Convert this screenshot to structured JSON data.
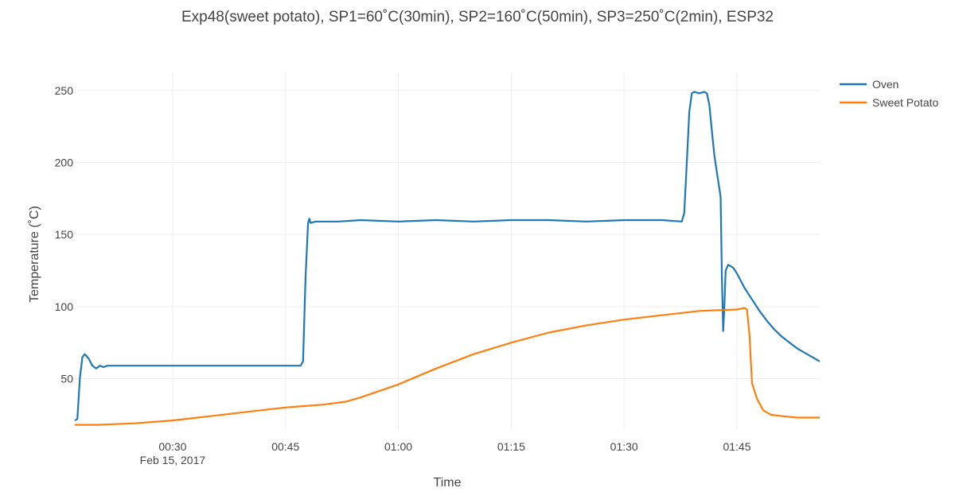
{
  "chart_data": {
    "type": "line",
    "title": "Exp48(sweet potato), SP1=60˚C(30min), SP2=160˚C(50min), SP3=250˚C(2min), ESP32",
    "xlabel": "Time",
    "ylabel": "Temperature (˚C)",
    "x_range": [
      "00:17",
      "01:56"
    ],
    "ylim": [
      15,
      262
    ],
    "x_ticks": [
      {
        "time": "00:30",
        "label": "00:30",
        "sublabel": "Feb 15, 2017"
      },
      {
        "time": "00:45",
        "label": "00:45",
        "sublabel": ""
      },
      {
        "time": "01:00",
        "label": "01:00",
        "sublabel": ""
      },
      {
        "time": "01:15",
        "label": "01:15",
        "sublabel": ""
      },
      {
        "time": "01:30",
        "label": "01:30",
        "sublabel": ""
      },
      {
        "time": "01:45",
        "label": "01:45",
        "sublabel": ""
      }
    ],
    "y_ticks": [
      {
        "value": 50,
        "label": "50"
      },
      {
        "value": 100,
        "label": "100"
      },
      {
        "value": 150,
        "label": "150"
      },
      {
        "value": 200,
        "label": "200"
      },
      {
        "value": 250,
        "label": "250"
      }
    ],
    "grid": true,
    "legend_position": "top-right",
    "series": [
      {
        "name": "Oven",
        "color": "#1f77b4",
        "points": [
          [
            "00:17:00",
            21
          ],
          [
            "00:17:20",
            22
          ],
          [
            "00:17:40",
            50
          ],
          [
            "00:18:00",
            65
          ],
          [
            "00:18:20",
            67
          ],
          [
            "00:18:50",
            64
          ],
          [
            "00:19:20",
            59
          ],
          [
            "00:19:50",
            57
          ],
          [
            "00:20:20",
            59
          ],
          [
            "00:20:50",
            58
          ],
          [
            "00:21:20",
            59
          ],
          [
            "00:22:00",
            59
          ],
          [
            "00:25:00",
            59
          ],
          [
            "00:30:00",
            59
          ],
          [
            "00:35:00",
            59
          ],
          [
            "00:40:00",
            59
          ],
          [
            "00:45:00",
            59
          ],
          [
            "00:47:00",
            59
          ],
          [
            "00:47:20",
            62
          ],
          [
            "00:47:40",
            120
          ],
          [
            "00:48:00",
            158
          ],
          [
            "00:48:10",
            161
          ],
          [
            "00:48:20",
            158
          ],
          [
            "00:49:00",
            159
          ],
          [
            "00:52:00",
            159
          ],
          [
            "00:55:00",
            160
          ],
          [
            "01:00:00",
            159
          ],
          [
            "01:05:00",
            160
          ],
          [
            "01:10:00",
            159
          ],
          [
            "01:15:00",
            160
          ],
          [
            "01:20:00",
            160
          ],
          [
            "01:25:00",
            159
          ],
          [
            "01:30:00",
            160
          ],
          [
            "01:35:00",
            160
          ],
          [
            "01:37:40",
            159
          ],
          [
            "01:38:00",
            165
          ],
          [
            "01:38:20",
            200
          ],
          [
            "01:38:40",
            235
          ],
          [
            "01:39:00",
            248
          ],
          [
            "01:39:20",
            249
          ],
          [
            "01:40:00",
            248
          ],
          [
            "01:40:40",
            249
          ],
          [
            "01:41:00",
            248
          ],
          [
            "01:41:20",
            240
          ],
          [
            "01:41:40",
            222
          ],
          [
            "01:42:00",
            205
          ],
          [
            "01:42:20",
            193
          ],
          [
            "01:42:40",
            182
          ],
          [
            "01:42:50",
            176
          ],
          [
            "01:43:00",
            120
          ],
          [
            "01:43:10",
            83
          ],
          [
            "01:43:20",
            100
          ],
          [
            "01:43:30",
            125
          ],
          [
            "01:43:50",
            129
          ],
          [
            "01:44:30",
            127
          ],
          [
            "01:45:00",
            123
          ],
          [
            "01:46:00",
            113
          ],
          [
            "01:47:00",
            105
          ],
          [
            "01:48:00",
            97
          ],
          [
            "01:49:00",
            90
          ],
          [
            "01:50:00",
            84
          ],
          [
            "01:51:00",
            79
          ],
          [
            "01:52:00",
            75
          ],
          [
            "01:53:00",
            71
          ],
          [
            "01:54:00",
            68
          ],
          [
            "01:55:00",
            65
          ],
          [
            "01:56:00",
            62
          ]
        ]
      },
      {
        "name": "Sweet Potato",
        "color": "#ff7f0e",
        "points": [
          [
            "00:17:00",
            18
          ],
          [
            "00:20:00",
            18
          ],
          [
            "00:25:00",
            19
          ],
          [
            "00:30:00",
            21
          ],
          [
            "00:35:00",
            24
          ],
          [
            "00:40:00",
            27
          ],
          [
            "00:45:00",
            30
          ],
          [
            "00:50:00",
            32
          ],
          [
            "00:53:00",
            34
          ],
          [
            "00:55:00",
            37
          ],
          [
            "01:00:00",
            46
          ],
          [
            "01:05:00",
            57
          ],
          [
            "01:10:00",
            67
          ],
          [
            "01:15:00",
            75
          ],
          [
            "01:20:00",
            82
          ],
          [
            "01:25:00",
            87
          ],
          [
            "01:30:00",
            91
          ],
          [
            "01:35:00",
            94
          ],
          [
            "01:40:00",
            97
          ],
          [
            "01:45:00",
            98
          ],
          [
            "01:46:00",
            99
          ],
          [
            "01:46:20",
            98
          ],
          [
            "01:46:40",
            80
          ],
          [
            "01:47:00",
            47
          ],
          [
            "01:47:40",
            36
          ],
          [
            "01:48:30",
            28
          ],
          [
            "01:49:30",
            25
          ],
          [
            "01:51:00",
            24
          ],
          [
            "01:53:00",
            23
          ],
          [
            "01:56:00",
            23
          ]
        ]
      }
    ]
  }
}
